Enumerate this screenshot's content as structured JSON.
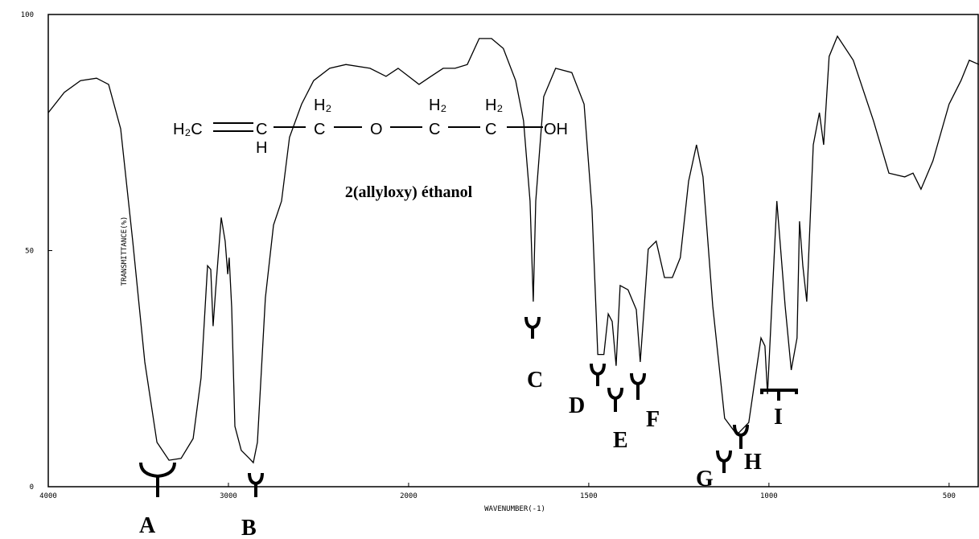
{
  "chart_data": {
    "type": "line",
    "xlabel": "WAVENUMBER(-1)",
    "ylabel": "TRANSMITTANCE(%)",
    "compound_name": "2(allyloxy) éthanol",
    "structure": [
      "H₂C",
      "C",
      "H",
      "C",
      "H₂",
      "O",
      "C",
      "H₂",
      "C",
      "H₂",
      "OH"
    ],
    "annotations": [
      "A",
      "B",
      "C",
      "D",
      "E",
      "F",
      "G",
      "H",
      "I"
    ],
    "xlim": [
      4000,
      417
    ],
    "ylim": [
      0,
      100
    ],
    "xscale": {
      "break": 2000,
      "ratio": 2
    },
    "xticks": [
      4000,
      3000,
      2000,
      1500,
      1000,
      500
    ],
    "yticks": [
      0,
      50,
      100
    ],
    "grid": false,
    "color": "#000000",
    "x": [
      4000,
      3911,
      3821,
      3732,
      3665,
      3598,
      3531,
      3464,
      3397,
      3330,
      3263,
      3196,
      3152,
      3116,
      3098,
      3085,
      3071,
      3040,
      3018,
      3004,
      2996,
      2982,
      2964,
      2929,
      2884,
      2862,
      2839,
      2795,
      2750,
      2705,
      2661,
      2594,
      2527,
      2438,
      2348,
      2214,
      2125,
      2058,
      2000,
      1971,
      1938,
      1904,
      1871,
      1837,
      1804,
      1770,
      1737,
      1703,
      1681,
      1663,
      1654,
      1647,
      1625,
      1592,
      1547,
      1513,
      1491,
      1475,
      1458,
      1446,
      1435,
      1424,
      1413,
      1391,
      1368,
      1357,
      1346,
      1335,
      1313,
      1290,
      1268,
      1246,
      1223,
      1201,
      1183,
      1156,
      1123,
      1089,
      1056,
      1022,
      1011,
      1004,
      978,
      955,
      938,
      922,
      915,
      906,
      895,
      877,
      860,
      848,
      833,
      810,
      766,
      710,
      667,
      623,
      600,
      578,
      545,
      500,
      467,
      444,
      417
    ],
    "values": [
      79.2,
      83.5,
      86,
      86.5,
      85.2,
      75.8,
      52,
      26.4,
      9.4,
      5.6,
      6,
      10.2,
      23,
      46.8,
      46,
      34,
      41.7,
      57,
      52,
      45,
      48.5,
      38,
      12.8,
      7.7,
      6,
      5.1,
      9.4,
      40,
      55.4,
      60.5,
      74,
      81,
      86,
      88.6,
      89.4,
      88.6,
      86.9,
      88.6,
      86.9,
      85.2,
      86.9,
      88.6,
      88.6,
      89.4,
      94.9,
      94.9,
      92.8,
      86,
      77.5,
      60.5,
      39.2,
      60.5,
      82.6,
      88.6,
      87.7,
      81,
      58.8,
      28,
      28,
      36.6,
      35,
      25.6,
      42.6,
      41.7,
      37.5,
      26.4,
      38.3,
      50.3,
      52,
      44.3,
      44.3,
      48.5,
      64.7,
      72.4,
      65.6,
      38.3,
      14.5,
      11,
      13.6,
      31.5,
      29.8,
      19.6,
      60.5,
      38.3,
      24.7,
      31.5,
      56.2,
      46.8,
      39.2,
      72.4,
      79.2,
      72.4,
      91.1,
      95.4,
      90.3,
      77.5,
      66.4,
      65.6,
      66.4,
      63,
      69,
      81,
      86,
      90.3,
      89.4
    ]
  }
}
